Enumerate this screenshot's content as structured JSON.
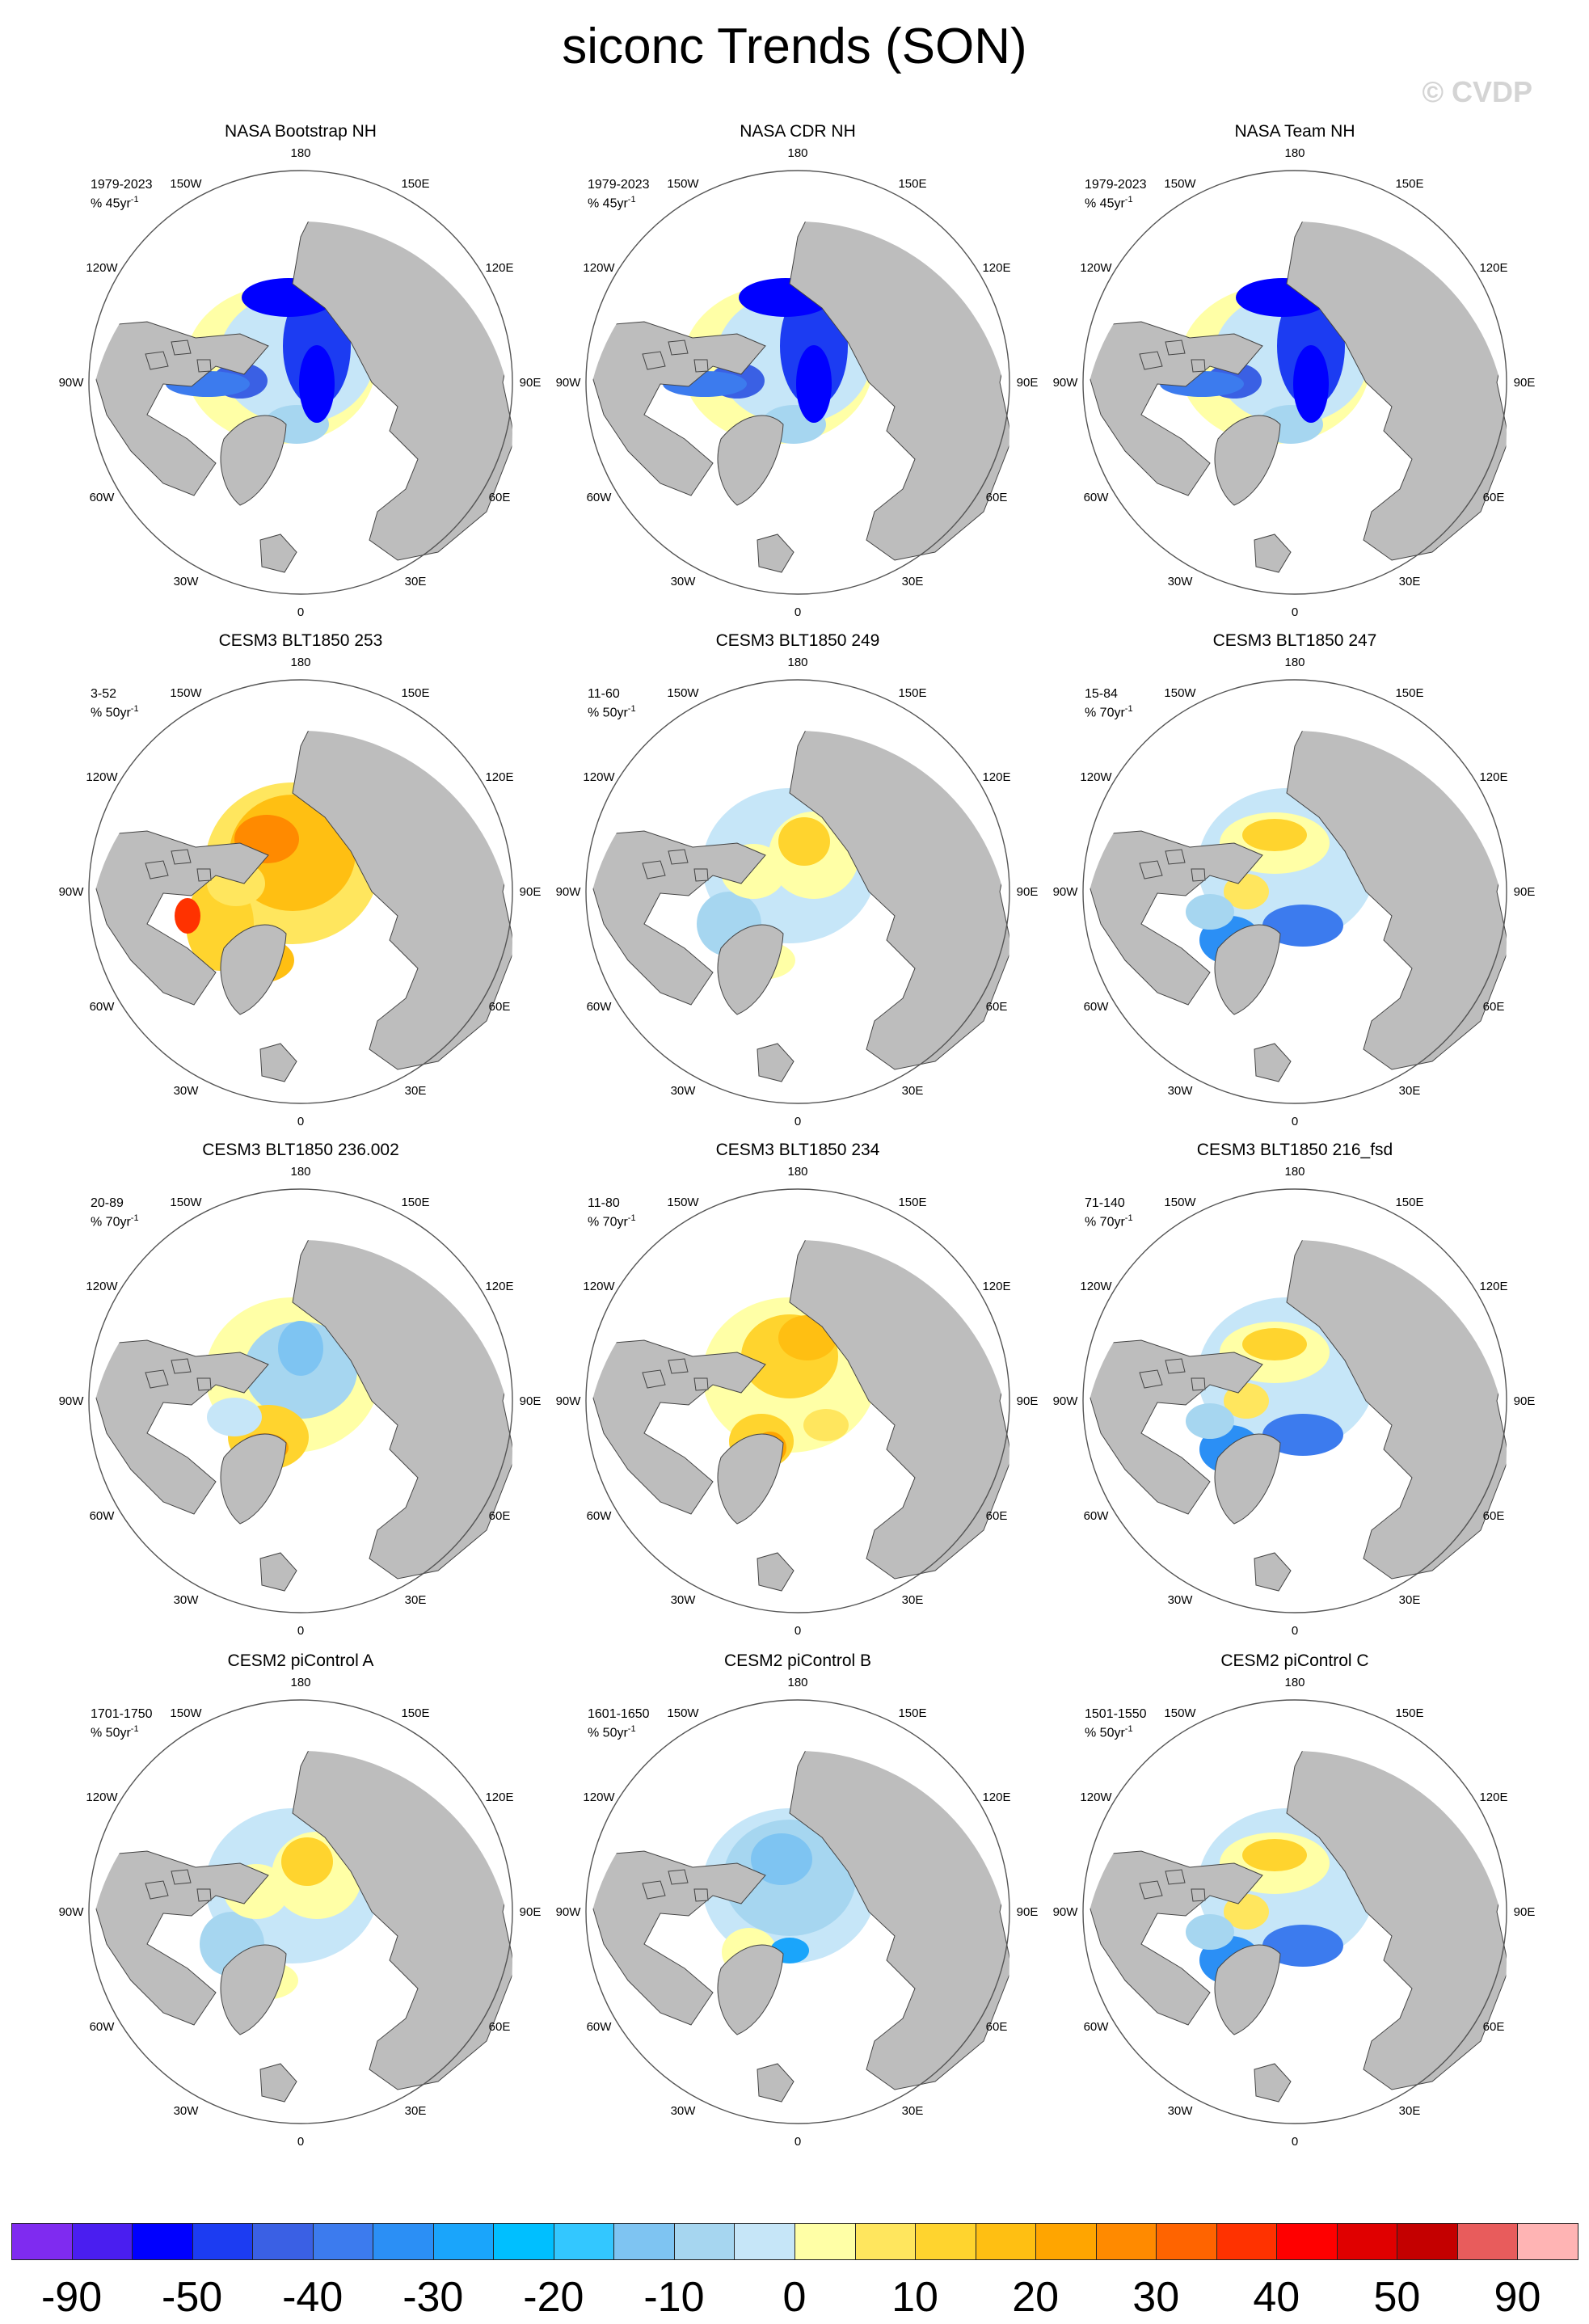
{
  "title": "siconc Trends (SON)",
  "watermark": "© CVDP",
  "lon_labels": [
    "180",
    "150E",
    "120E",
    "90E",
    "60E",
    "30E",
    "0",
    "30W",
    "60W",
    "90W",
    "120W",
    "150W"
  ],
  "colorbar": {
    "colors": [
      "#7f2bf0",
      "#4a1ef0",
      "#0000ff",
      "#1c3cf2",
      "#3a60e4",
      "#3c7bee",
      "#2b8ff5",
      "#1aa5fb",
      "#00bfff",
      "#33c7ff",
      "#7ec4f2",
      "#a6d6f0",
      "#c6e6f8",
      "#ffffa6",
      "#ffe65e",
      "#ffd42e",
      "#ffbf12",
      "#ffa500",
      "#ff8a00",
      "#ff6400",
      "#ff3200",
      "#ff0000",
      "#e00000",
      "#c40000",
      "#e85c5c",
      "#ffb4b4"
    ],
    "labels": [
      {
        "text": "-90",
        "boundary": 1
      },
      {
        "text": "-50",
        "boundary": 3
      },
      {
        "text": "-40",
        "boundary": 5
      },
      {
        "text": "-30",
        "boundary": 7
      },
      {
        "text": "-20",
        "boundary": 9
      },
      {
        "text": "-10",
        "boundary": 11
      },
      {
        "text": "0",
        "boundary": 13
      },
      {
        "text": "10",
        "boundary": 15
      },
      {
        "text": "20",
        "boundary": 17
      },
      {
        "text": "30",
        "boundary": 19
      },
      {
        "text": "40",
        "boundary": 21
      },
      {
        "text": "50",
        "boundary": 23
      },
      {
        "text": "90",
        "boundary": 25
      }
    ]
  },
  "panels": [
    {
      "title": "NASA Bootstrap NH",
      "years": "1979-2023",
      "units": "% 45yr",
      "sup": "-1",
      "trend": "decline"
    },
    {
      "title": "NASA CDR NH",
      "years": "1979-2023",
      "units": "% 45yr",
      "sup": "-1",
      "trend": "decline"
    },
    {
      "title": "NASA Team NH",
      "years": "1979-2023",
      "units": "% 45yr",
      "sup": "-1",
      "trend": "decline"
    },
    {
      "title": "CESM3 BLT1850 253",
      "years": "3-52",
      "units": "% 50yr",
      "sup": "-1",
      "trend": "strong-increase"
    },
    {
      "title": "CESM3 BLT1850 249",
      "years": "11-60",
      "units": "% 50yr",
      "sup": "-1",
      "trend": "mixed-increase"
    },
    {
      "title": "CESM3 BLT1850 247",
      "years": "15-84",
      "units": "% 70yr",
      "sup": "-1",
      "trend": "mixed-decline"
    },
    {
      "title": "CESM3 BLT1850 236.002",
      "years": "20-89",
      "units": "% 70yr",
      "sup": "-1",
      "trend": "mixed"
    },
    {
      "title": "CESM3 BLT1850 234",
      "years": "11-80",
      "units": "% 70yr",
      "sup": "-1",
      "trend": "increase"
    },
    {
      "title": "CESM3 BLT1850 216_fsd",
      "years": "71-140",
      "units": "% 70yr",
      "sup": "-1",
      "trend": "mixed-decline"
    },
    {
      "title": "CESM2 piControl A",
      "years": "1701-1750",
      "units": "% 50yr",
      "sup": "-1",
      "trend": "mixed-increase"
    },
    {
      "title": "CESM2 piControl B",
      "years": "1601-1650",
      "units": "% 50yr",
      "sup": "-1",
      "trend": "light-decline"
    },
    {
      "title": "CESM2 piControl C",
      "years": "1501-1550",
      "units": "% 50yr",
      "sup": "-1",
      "trend": "mixed-decline"
    }
  ]
}
